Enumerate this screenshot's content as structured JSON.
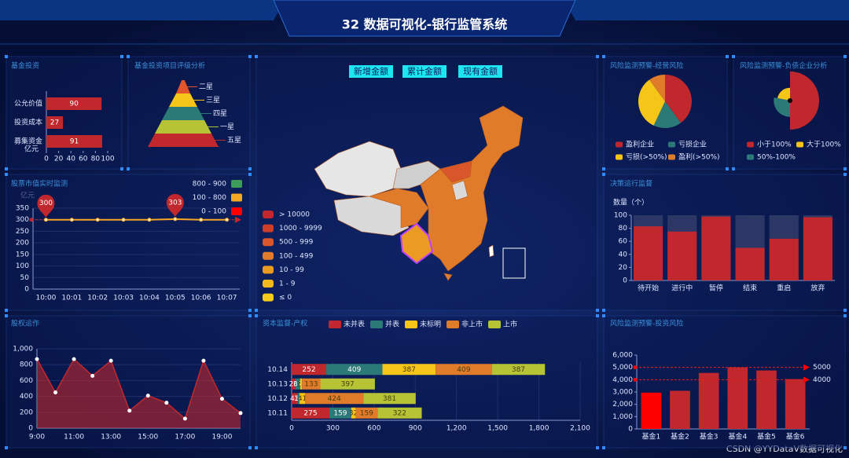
{
  "header": {
    "title": "32 数据可视化-银行监管系统"
  },
  "map": {
    "buttons": [
      "新增金额",
      "累计金额",
      "现有金额"
    ],
    "legend": [
      {
        "label": "> 10000",
        "color": "#c0282d"
      },
      {
        "label": "1000 - 9999",
        "color": "#cf3d2b"
      },
      {
        "label": "500 - 999",
        "color": "#d8562a"
      },
      {
        "label": "100 - 499",
        "color": "#e07b2a"
      },
      {
        "label": "10 - 99",
        "color": "#eb9a22"
      },
      {
        "label": "1 - 9",
        "color": "#f2b81c"
      },
      {
        "label": "≤ 0",
        "color": "#f5cc18"
      }
    ]
  },
  "chart_data": [
    {
      "type": "hbar",
      "title": "基金投资",
      "categories": [
        "公允价值",
        "投资成本",
        "募集资金"
      ],
      "values": [
        90,
        27,
        91
      ],
      "color": "#c0282d",
      "unit": "亿元",
      "xlim": [
        0,
        100
      ],
      "xticks": [
        0,
        20,
        40,
        60,
        80,
        100
      ]
    },
    {
      "type": "funnel",
      "title": "基金投资项目评级分析",
      "categories": [
        "二星",
        "三星",
        "四星",
        "一星",
        "五星"
      ],
      "values": [
        20,
        40,
        60,
        80,
        100
      ],
      "colors": [
        "#e0552a",
        "#f5c518",
        "#2b7a78",
        "#b5c334",
        "#c0282d"
      ]
    },
    {
      "type": "line",
      "title": "股票市值实时监测",
      "y_label": "亿元",
      "categories": [
        "10:00",
        "10:01",
        "10:02",
        "10:03",
        "10:04",
        "10:05",
        "10:06",
        "10:07"
      ],
      "values": [
        300,
        300,
        300,
        300,
        300,
        303,
        300,
        300
      ],
      "color": "#f5a623",
      "marker_color": "#c0282d",
      "markline": 300,
      "ylim": [
        0,
        350
      ],
      "yticks": [
        0,
        50,
        100,
        150,
        200,
        250,
        300,
        350
      ],
      "grid": true,
      "pieces": [
        {
          "label": "800 - 900",
          "color": "#3d9a5b"
        },
        {
          "label": "100 - 800",
          "color": "#f5a623"
        },
        {
          "label": "0 - 100",
          "color": "#ff0000"
        }
      ]
    },
    {
      "type": "area",
      "title": "股权运作",
      "categories": [
        "9:00",
        null,
        "11:00",
        null,
        "13:00",
        null,
        "15:00",
        null,
        "17:00",
        null,
        "19:00",
        null
      ],
      "values": [
        870,
        450,
        870,
        660,
        850,
        220,
        410,
        320,
        120,
        850,
        370,
        190
      ],
      "color": "#c0282d",
      "ylim": [
        0,
        1000
      ],
      "yticks": [
        0,
        200,
        400,
        600,
        800,
        {
          "value": 1000,
          "label": "1,000"
        }
      ],
      "grid": true
    },
    {
      "type": "stacked-hbar",
      "title": "资本监督-产权",
      "categories": [
        "10.11",
        "10.12",
        "10.13",
        "10.14"
      ],
      "series": [
        {
          "name": "未并表",
          "color": "#c0282d",
          "values": [
            275,
            43,
            26,
            252
          ]
        },
        {
          "name": "并表",
          "color": "#2b7a78",
          "values": [
            159,
            14,
            37,
            409
          ]
        },
        {
          "name": "未标明",
          "color": "#f5c518",
          "values": [
            32,
            41,
            13,
            387
          ]
        },
        {
          "name": "非上市",
          "color": "#e07b2a",
          "values": [
            159,
            424,
            133,
            409
          ]
        },
        {
          "name": "上市",
          "color": "#b5c334",
          "values": [
            322,
            381,
            397,
            387
          ]
        }
      ],
      "xlim": [
        0,
        2100
      ],
      "xticks": [
        0,
        300,
        600,
        900,
        {
          "value": 1200,
          "label": "1,200"
        },
        {
          "value": 1500,
          "label": "1,500"
        },
        {
          "value": 1800,
          "label": "1,800"
        },
        {
          "value": 2100,
          "label": "2,100"
        }
      ]
    },
    {
      "type": "pie",
      "title": "风险监测预警-经营风险",
      "categories": [
        "盈利企业",
        "亏损企业",
        "亏损(>50%)",
        "盈利(>50%)"
      ],
      "values": [
        40,
        17,
        33,
        10
      ],
      "colors": [
        "#c0282d",
        "#2b7a78",
        "#f5c518",
        "#e07b2a"
      ]
    },
    {
      "type": "rose",
      "title": "风险监测预警-负债企业分析",
      "categories": [
        "小于100%",
        "大于100%",
        "50%-100%"
      ],
      "values": [
        50,
        22,
        28
      ],
      "colors": [
        "#c0282d",
        "#f5c518",
        "#2b7a78"
      ]
    },
    {
      "type": "bar",
      "title": "决策运行监督",
      "y_label": "数量（个）",
      "categories": [
        "待开始",
        "进行中",
        "暂停",
        "结束",
        "重启",
        "放弃"
      ],
      "values": [
        83,
        75,
        98,
        50,
        64,
        97
      ],
      "color": "#c0282d",
      "shadow_color": "#2c3766",
      "ylim": [
        0,
        100
      ],
      "yticks": [
        0,
        20,
        40,
        60,
        80,
        100
      ]
    },
    {
      "type": "bar",
      "title": "风险监测预警-投资风险",
      "categories": [
        "基金1",
        "基金2",
        "基金3",
        "基金4",
        "基金5",
        "基金6"
      ],
      "values": [
        2950,
        3100,
        4550,
        5000,
        4750,
        4050
      ],
      "colors": [
        "#ff0000",
        "#c0282d",
        "#c0282d",
        "#c0282d",
        "#c0282d",
        "#c0282d"
      ],
      "marklines": [
        5000,
        4000
      ],
      "ylim": [
        0,
        6000
      ],
      "yticks": [
        0,
        {
          "value": 1000,
          "label": "1,000"
        },
        {
          "value": 2000,
          "label": "2,000"
        },
        {
          "value": 3000,
          "label": "3,000"
        },
        {
          "value": 4000,
          "label": "4,000"
        },
        {
          "value": 5000,
          "label": "5,000"
        },
        {
          "value": 6000,
          "label": "6,000"
        }
      ]
    }
  ],
  "watermark": "CSDN @YYDataV数据可视化"
}
